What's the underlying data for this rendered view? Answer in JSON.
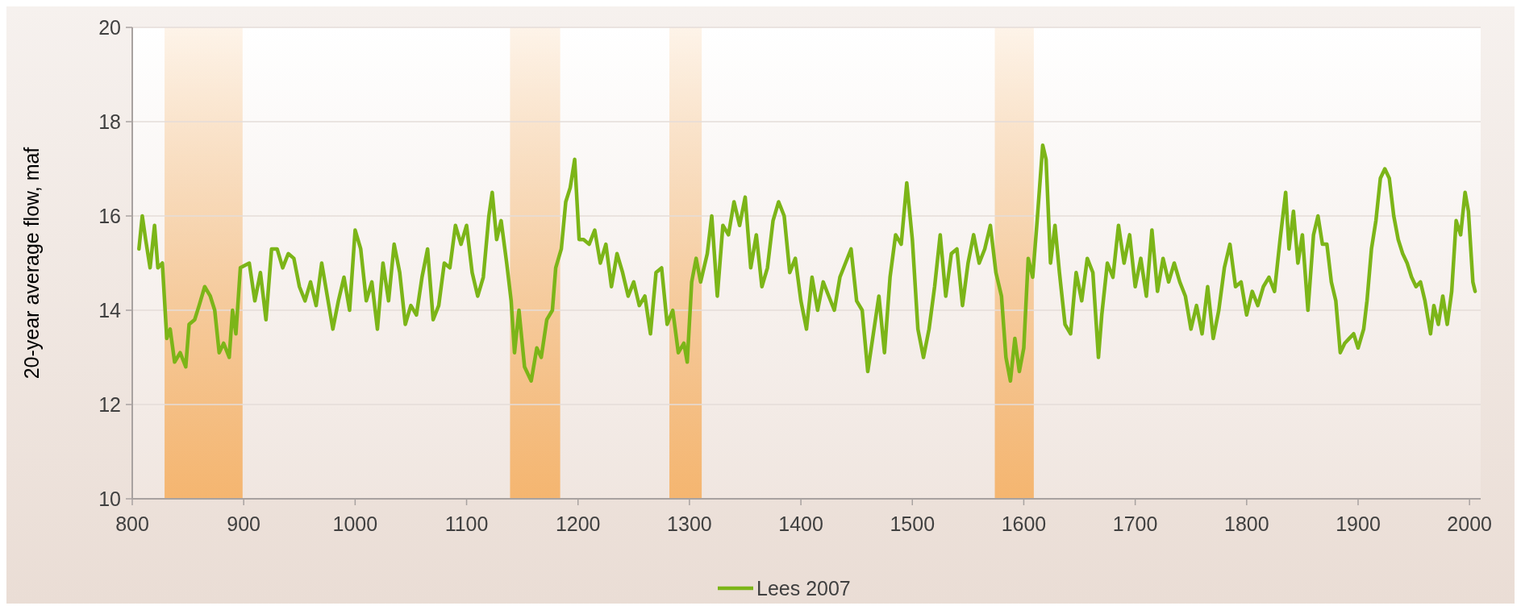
{
  "chart_data": {
    "type": "line",
    "ylabel": "20-year average flow, maf",
    "xlim": [
      800,
      2010
    ],
    "xticks": [
      800,
      900,
      1000,
      1100,
      1200,
      1300,
      1400,
      1500,
      1600,
      1700,
      1800,
      1900,
      2000
    ],
    "ylim": [
      10,
      20
    ],
    "yticks": [
      10,
      12,
      14,
      16,
      18,
      20
    ],
    "grid": "y",
    "legend": "bottom",
    "line_style": "solid",
    "marker": "none",
    "bands": [
      {
        "axis": "x",
        "from": 829,
        "to": 899,
        "color": "#f5b36a"
      },
      {
        "axis": "x",
        "from": 1139,
        "to": 1184,
        "color": "#f5b36a"
      },
      {
        "axis": "x",
        "from": 1282,
        "to": 1311,
        "color": "#f5b36a"
      },
      {
        "axis": "x",
        "from": 1574,
        "to": 1609,
        "color": "#f5b36a"
      }
    ],
    "series": [
      {
        "name": "Lees 2007",
        "color": "#7cb518",
        "x": [
          806,
          809,
          812,
          816,
          820,
          823,
          827,
          831,
          834,
          838,
          843,
          848,
          851,
          856,
          860,
          865,
          870,
          874,
          878,
          882,
          887,
          890,
          893,
          897,
          905,
          910,
          915,
          920,
          925,
          930,
          935,
          940,
          945,
          950,
          955,
          960,
          965,
          970,
          975,
          980,
          985,
          990,
          995,
          1000,
          1005,
          1010,
          1015,
          1020,
          1025,
          1030,
          1035,
          1040,
          1045,
          1050,
          1055,
          1060,
          1065,
          1070,
          1075,
          1080,
          1085,
          1090,
          1095,
          1100,
          1105,
          1110,
          1115,
          1120,
          1123,
          1127,
          1131,
          1136,
          1140,
          1143,
          1147,
          1152,
          1158,
          1163,
          1167,
          1172,
          1177,
          1180,
          1185,
          1189,
          1193,
          1197,
          1201,
          1205,
          1210,
          1215,
          1220,
          1225,
          1230,
          1235,
          1240,
          1245,
          1250,
          1255,
          1260,
          1265,
          1270,
          1275,
          1280,
          1285,
          1290,
          1295,
          1298,
          1302,
          1306,
          1310,
          1316,
          1320,
          1325,
          1330,
          1335,
          1340,
          1345,
          1350,
          1355,
          1360,
          1365,
          1370,
          1375,
          1380,
          1385,
          1390,
          1395,
          1400,
          1405,
          1410,
          1415,
          1420,
          1425,
          1430,
          1435,
          1440,
          1445,
          1450,
          1455,
          1460,
          1465,
          1470,
          1475,
          1480,
          1485,
          1490,
          1495,
          1500,
          1505,
          1510,
          1515,
          1520,
          1525,
          1530,
          1535,
          1540,
          1545,
          1550,
          1555,
          1560,
          1565,
          1570,
          1575,
          1580,
          1584,
          1588,
          1592,
          1596,
          1600,
          1604,
          1608,
          1612,
          1617,
          1620,
          1624,
          1628,
          1632,
          1637,
          1642,
          1647,
          1652,
          1657,
          1662,
          1667,
          1670,
          1675,
          1680,
          1685,
          1690,
          1695,
          1700,
          1705,
          1710,
          1715,
          1720,
          1725,
          1730,
          1735,
          1740,
          1745,
          1750,
          1755,
          1760,
          1765,
          1770,
          1775,
          1780,
          1785,
          1790,
          1795,
          1800,
          1805,
          1810,
          1815,
          1820,
          1825,
          1830,
          1835,
          1838,
          1842,
          1846,
          1850,
          1855,
          1860,
          1864,
          1868,
          1872,
          1876,
          1880,
          1884,
          1888,
          1892,
          1896,
          1900,
          1905,
          1908,
          1912,
          1916,
          1920,
          1924,
          1928,
          1932,
          1936,
          1940,
          1944,
          1948,
          1952,
          1956,
          1960,
          1965,
          1968,
          1972,
          1976,
          1980,
          1984,
          1988,
          1992,
          1996,
          1999,
          2003,
          2005
        ],
        "values": [
          15.3,
          16.0,
          15.5,
          14.9,
          15.8,
          14.9,
          15.0,
          13.4,
          13.6,
          12.9,
          13.1,
          12.8,
          13.7,
          13.8,
          14.1,
          14.5,
          14.3,
          14.0,
          13.1,
          13.3,
          13.0,
          14.0,
          13.5,
          14.9,
          15.0,
          14.2,
          14.8,
          13.8,
          15.3,
          15.3,
          14.9,
          15.2,
          15.1,
          14.5,
          14.2,
          14.6,
          14.1,
          15.0,
          14.3,
          13.6,
          14.2,
          14.7,
          14.0,
          15.7,
          15.3,
          14.2,
          14.6,
          13.6,
          15.0,
          14.2,
          15.4,
          14.8,
          13.7,
          14.1,
          13.9,
          14.7,
          15.3,
          13.8,
          14.1,
          15.0,
          14.9,
          15.8,
          15.4,
          15.8,
          14.8,
          14.3,
          14.7,
          16.0,
          16.5,
          15.5,
          15.9,
          15.0,
          14.2,
          13.1,
          14.0,
          12.8,
          12.5,
          13.2,
          13.0,
          13.8,
          14.0,
          14.9,
          15.3,
          16.3,
          16.6,
          17.2,
          15.5,
          15.5,
          15.4,
          15.7,
          15.0,
          15.4,
          14.5,
          15.2,
          14.8,
          14.3,
          14.6,
          14.1,
          14.3,
          13.5,
          14.8,
          14.9,
          13.7,
          14.0,
          13.1,
          13.3,
          12.9,
          14.6,
          15.1,
          14.6,
          15.2,
          16.0,
          14.3,
          15.8,
          15.6,
          16.3,
          15.8,
          16.4,
          14.9,
          15.6,
          14.5,
          14.9,
          15.9,
          16.3,
          16.0,
          14.8,
          15.1,
          14.2,
          13.6,
          14.7,
          14.0,
          14.6,
          14.3,
          14.0,
          14.7,
          15.0,
          15.3,
          14.2,
          14.0,
          12.7,
          13.5,
          14.3,
          13.1,
          14.7,
          15.6,
          15.4,
          16.7,
          15.5,
          13.6,
          13.0,
          13.6,
          14.5,
          15.6,
          14.3,
          15.2,
          15.3,
          14.1,
          15.0,
          15.6,
          15.0,
          15.3,
          15.8,
          14.8,
          14.3,
          13.0,
          12.5,
          13.4,
          12.7,
          13.2,
          15.1,
          14.7,
          15.9,
          17.5,
          17.2,
          15.0,
          15.8,
          14.8,
          13.7,
          13.5,
          14.8,
          14.2,
          15.1,
          14.8,
          13.0,
          13.9,
          15.0,
          14.7,
          15.8,
          15.0,
          15.6,
          14.5,
          15.1,
          14.3,
          15.7,
          14.4,
          15.1,
          14.6,
          15.0,
          14.6,
          14.3,
          13.6,
          14.1,
          13.5,
          14.5,
          13.4,
          14.0,
          14.9,
          15.4,
          14.5,
          14.6,
          13.9,
          14.4,
          14.1,
          14.5,
          14.7,
          14.4,
          15.5,
          16.5,
          15.3,
          16.1,
          15.0,
          15.6,
          14.0,
          15.6,
          16.0,
          15.4,
          15.4,
          14.6,
          14.2,
          13.1,
          13.3,
          13.4,
          13.5,
          13.2,
          13.6,
          14.2,
          15.3,
          15.9,
          16.8,
          17.0,
          16.8,
          16.0,
          15.5,
          15.2,
          15.0,
          14.7,
          14.5,
          14.6,
          14.2,
          13.5,
          14.1,
          13.7,
          14.3,
          13.7,
          14.4,
          15.9,
          15.6,
          16.5,
          16.1,
          14.6,
          14.4
        ]
      }
    ]
  }
}
